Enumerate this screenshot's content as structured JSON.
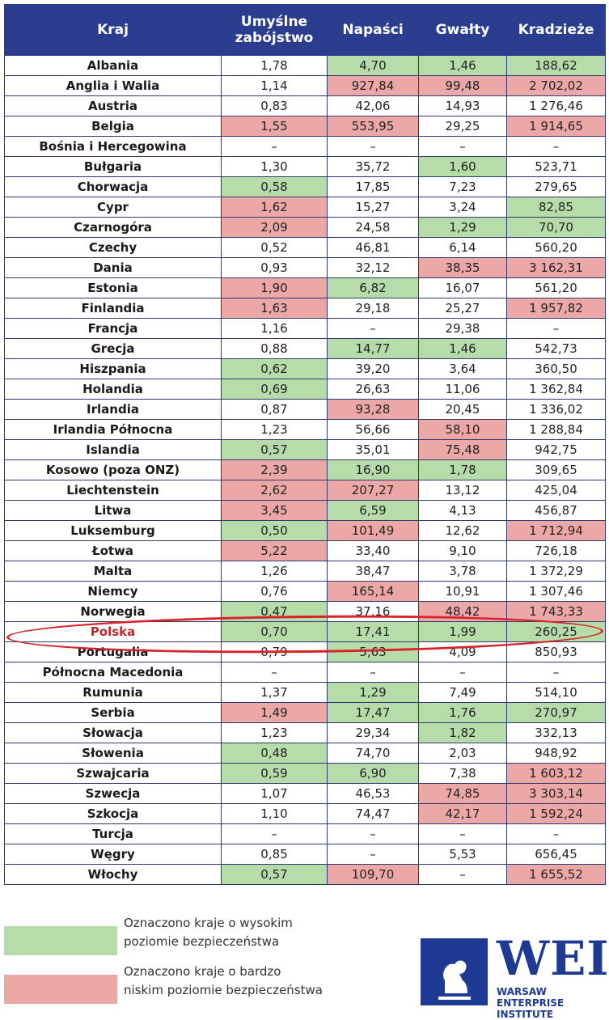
{
  "table": {
    "headers": [
      "Kraj",
      "Umyślne zabójstwo",
      "Napaści",
      "Gwałty",
      "Kradzieże"
    ],
    "rows": [
      {
        "country": "Albania",
        "cells": [
          {
            "v": "1,78",
            "c": ""
          },
          {
            "v": "4,70",
            "c": "g"
          },
          {
            "v": "1,46",
            "c": "g"
          },
          {
            "v": "188,62",
            "c": "g"
          }
        ]
      },
      {
        "country": "Anglia i Walia",
        "cells": [
          {
            "v": "1,14",
            "c": ""
          },
          {
            "v": "927,84",
            "c": "r"
          },
          {
            "v": "99,48",
            "c": "r"
          },
          {
            "v": "2 702,02",
            "c": "r"
          }
        ]
      },
      {
        "country": "Austria",
        "cells": [
          {
            "v": "0,83",
            "c": ""
          },
          {
            "v": "42,06",
            "c": ""
          },
          {
            "v": "14,93",
            "c": ""
          },
          {
            "v": "1 276,46",
            "c": ""
          }
        ]
      },
      {
        "country": "Belgia",
        "cells": [
          {
            "v": "1,55",
            "c": "r"
          },
          {
            "v": "553,95",
            "c": "r"
          },
          {
            "v": "29,25",
            "c": ""
          },
          {
            "v": "1 914,65",
            "c": "r"
          }
        ]
      },
      {
        "country": "Bośnia i Hercegowina",
        "cells": [
          {
            "v": "–",
            "c": ""
          },
          {
            "v": "–",
            "c": ""
          },
          {
            "v": "–",
            "c": ""
          },
          {
            "v": "–",
            "c": ""
          }
        ]
      },
      {
        "country": "Bułgaria",
        "cells": [
          {
            "v": "1,30",
            "c": ""
          },
          {
            "v": "35,72",
            "c": ""
          },
          {
            "v": "1,60",
            "c": "g"
          },
          {
            "v": "523,71",
            "c": ""
          }
        ]
      },
      {
        "country": "Chorwacja",
        "cells": [
          {
            "v": "0,58",
            "c": "g"
          },
          {
            "v": "17,85",
            "c": ""
          },
          {
            "v": "7,23",
            "c": ""
          },
          {
            "v": "279,65",
            "c": ""
          }
        ]
      },
      {
        "country": "Cypr",
        "cells": [
          {
            "v": "1,62",
            "c": "r"
          },
          {
            "v": "15,27",
            "c": ""
          },
          {
            "v": "3,24",
            "c": ""
          },
          {
            "v": "82,85",
            "c": "g"
          }
        ]
      },
      {
        "country": "Czarnogóra",
        "cells": [
          {
            "v": "2,09",
            "c": "r"
          },
          {
            "v": "24,58",
            "c": ""
          },
          {
            "v": "1,29",
            "c": "g"
          },
          {
            "v": "70,70",
            "c": "g"
          }
        ]
      },
      {
        "country": "Czechy",
        "cells": [
          {
            "v": "0,52",
            "c": ""
          },
          {
            "v": "46,81",
            "c": ""
          },
          {
            "v": "6,14",
            "c": ""
          },
          {
            "v": "560,20",
            "c": ""
          }
        ]
      },
      {
        "country": "Dania",
        "cells": [
          {
            "v": "0,93",
            "c": ""
          },
          {
            "v": "32,12",
            "c": ""
          },
          {
            "v": "38,35",
            "c": "r"
          },
          {
            "v": "3 162,31",
            "c": "r"
          }
        ]
      },
      {
        "country": "Estonia",
        "cells": [
          {
            "v": "1,90",
            "c": "r"
          },
          {
            "v": "6,82",
            "c": "g"
          },
          {
            "v": "16,07",
            "c": ""
          },
          {
            "v": "561,20",
            "c": ""
          }
        ]
      },
      {
        "country": "Finlandia",
        "cells": [
          {
            "v": "1,63",
            "c": "r"
          },
          {
            "v": "29,18",
            "c": ""
          },
          {
            "v": "25,27",
            "c": ""
          },
          {
            "v": "1 957,82",
            "c": "r"
          }
        ]
      },
      {
        "country": "Francja",
        "cells": [
          {
            "v": "1,16",
            "c": ""
          },
          {
            "v": "–",
            "c": ""
          },
          {
            "v": "29,38",
            "c": ""
          },
          {
            "v": "–",
            "c": ""
          }
        ]
      },
      {
        "country": "Grecja",
        "cells": [
          {
            "v": "0,88",
            "c": ""
          },
          {
            "v": "14,77",
            "c": "g"
          },
          {
            "v": "1,46",
            "c": "g"
          },
          {
            "v": "542,73",
            "c": ""
          }
        ]
      },
      {
        "country": "Hiszpania",
        "cells": [
          {
            "v": "0,62",
            "c": "g"
          },
          {
            "v": "39,20",
            "c": ""
          },
          {
            "v": "3,64",
            "c": ""
          },
          {
            "v": "360,50",
            "c": ""
          }
        ]
      },
      {
        "country": "Holandia",
        "cells": [
          {
            "v": "0,69",
            "c": "g"
          },
          {
            "v": "26,63",
            "c": ""
          },
          {
            "v": "11,06",
            "c": ""
          },
          {
            "v": "1 362,84",
            "c": ""
          }
        ]
      },
      {
        "country": "Irlandia",
        "cells": [
          {
            "v": "0,87",
            "c": ""
          },
          {
            "v": "93,28",
            "c": "r"
          },
          {
            "v": "20,45",
            "c": ""
          },
          {
            "v": "1 336,02",
            "c": ""
          }
        ]
      },
      {
        "country": "Irlandia Północna",
        "cells": [
          {
            "v": "1,23",
            "c": ""
          },
          {
            "v": "56,66",
            "c": ""
          },
          {
            "v": "58,10",
            "c": "r"
          },
          {
            "v": "1 288,84",
            "c": ""
          }
        ]
      },
      {
        "country": "Islandia",
        "cells": [
          {
            "v": "0,57",
            "c": "g"
          },
          {
            "v": "35,01",
            "c": ""
          },
          {
            "v": "75,48",
            "c": "r"
          },
          {
            "v": "942,75",
            "c": ""
          }
        ]
      },
      {
        "country": "Kosowo (poza ONZ)",
        "cells": [
          {
            "v": "2,39",
            "c": "r"
          },
          {
            "v": "16,90",
            "c": "g"
          },
          {
            "v": "1,78",
            "c": "g"
          },
          {
            "v": "309,65",
            "c": ""
          }
        ]
      },
      {
        "country": "Liechtenstein",
        "cells": [
          {
            "v": "2,62",
            "c": "r"
          },
          {
            "v": "207,27",
            "c": "r"
          },
          {
            "v": "13,12",
            "c": ""
          },
          {
            "v": "425,04",
            "c": ""
          }
        ]
      },
      {
        "country": "Litwa",
        "cells": [
          {
            "v": "3,45",
            "c": "r"
          },
          {
            "v": "6,59",
            "c": "g"
          },
          {
            "v": "4,13",
            "c": ""
          },
          {
            "v": "456,87",
            "c": ""
          }
        ]
      },
      {
        "country": "Luksemburg",
        "cells": [
          {
            "v": "0,50",
            "c": "g"
          },
          {
            "v": "101,49",
            "c": "r"
          },
          {
            "v": "12,62",
            "c": ""
          },
          {
            "v": "1 712,94",
            "c": "r"
          }
        ]
      },
      {
        "country": "Łotwa",
        "cells": [
          {
            "v": "5,22",
            "c": "r"
          },
          {
            "v": "33,40",
            "c": ""
          },
          {
            "v": "9,10",
            "c": ""
          },
          {
            "v": "726,18",
            "c": ""
          }
        ]
      },
      {
        "country": "Malta",
        "cells": [
          {
            "v": "1,26",
            "c": ""
          },
          {
            "v": "38,47",
            "c": ""
          },
          {
            "v": "3,78",
            "c": ""
          },
          {
            "v": "1 372,29",
            "c": ""
          }
        ]
      },
      {
        "country": "Niemcy",
        "cells": [
          {
            "v": "0,76",
            "c": ""
          },
          {
            "v": "165,14",
            "c": "r"
          },
          {
            "v": "10,91",
            "c": ""
          },
          {
            "v": "1 307,46",
            "c": ""
          }
        ]
      },
      {
        "country": "Norwegia",
        "cells": [
          {
            "v": "0,47",
            "c": "g"
          },
          {
            "v": "37,16",
            "c": ""
          },
          {
            "v": "48,42",
            "c": "r"
          },
          {
            "v": "1 743,33",
            "c": "r"
          }
        ]
      },
      {
        "country": "Polska",
        "highlight": true,
        "cells": [
          {
            "v": "0,70",
            "c": "g"
          },
          {
            "v": "17,41",
            "c": "g"
          },
          {
            "v": "1,99",
            "c": "g"
          },
          {
            "v": "260,25",
            "c": "g"
          }
        ]
      },
      {
        "country": "Portugalia",
        "cells": [
          {
            "v": "0,79",
            "c": ""
          },
          {
            "v": "5,63",
            "c": "g"
          },
          {
            "v": "4,09",
            "c": ""
          },
          {
            "v": "850,93",
            "c": ""
          }
        ]
      },
      {
        "country": "Północna Macedonia",
        "cells": [
          {
            "v": "–",
            "c": ""
          },
          {
            "v": "–",
            "c": ""
          },
          {
            "v": "–",
            "c": ""
          },
          {
            "v": "–",
            "c": ""
          }
        ]
      },
      {
        "country": "Rumunia",
        "cells": [
          {
            "v": "1,37",
            "c": ""
          },
          {
            "v": "1,29",
            "c": "g"
          },
          {
            "v": "7,49",
            "c": ""
          },
          {
            "v": "514,10",
            "c": ""
          }
        ]
      },
      {
        "country": "Serbia",
        "cells": [
          {
            "v": "1,49",
            "c": "r"
          },
          {
            "v": "17,47",
            "c": "g"
          },
          {
            "v": "1,76",
            "c": "g"
          },
          {
            "v": "270,97",
            "c": "g"
          }
        ]
      },
      {
        "country": "Słowacja",
        "cells": [
          {
            "v": "1,23",
            "c": ""
          },
          {
            "v": "29,34",
            "c": ""
          },
          {
            "v": "1,82",
            "c": "g"
          },
          {
            "v": "332,13",
            "c": ""
          }
        ]
      },
      {
        "country": "Słowenia",
        "cells": [
          {
            "v": "0,48",
            "c": "g"
          },
          {
            "v": "74,70",
            "c": ""
          },
          {
            "v": "2,03",
            "c": ""
          },
          {
            "v": "948,92",
            "c": ""
          }
        ]
      },
      {
        "country": "Szwajcaria",
        "cells": [
          {
            "v": "0,59",
            "c": "g"
          },
          {
            "v": "6,90",
            "c": "g"
          },
          {
            "v": "7,38",
            "c": ""
          },
          {
            "v": "1 603,12",
            "c": "r"
          }
        ]
      },
      {
        "country": "Szwecja",
        "cells": [
          {
            "v": "1,07",
            "c": ""
          },
          {
            "v": "46,53",
            "c": ""
          },
          {
            "v": "74,85",
            "c": "r"
          },
          {
            "v": "3 303,14",
            "c": "r"
          }
        ]
      },
      {
        "country": "Szkocja",
        "cells": [
          {
            "v": "1,10",
            "c": ""
          },
          {
            "v": "74,47",
            "c": ""
          },
          {
            "v": "42,17",
            "c": "r"
          },
          {
            "v": "1 592,24",
            "c": "r"
          }
        ]
      },
      {
        "country": "Turcja",
        "cells": [
          {
            "v": "–",
            "c": ""
          },
          {
            "v": "–",
            "c": ""
          },
          {
            "v": "–",
            "c": ""
          },
          {
            "v": "–",
            "c": ""
          }
        ]
      },
      {
        "country": "Węgry",
        "cells": [
          {
            "v": "0,85",
            "c": ""
          },
          {
            "v": "–",
            "c": ""
          },
          {
            "v": "5,53",
            "c": ""
          },
          {
            "v": "656,45",
            "c": ""
          }
        ]
      },
      {
        "country": "Włochy",
        "cells": [
          {
            "v": "0,57",
            "c": "g"
          },
          {
            "v": "109,70",
            "c": "r"
          },
          {
            "v": "–",
            "c": ""
          },
          {
            "v": "1 655,52",
            "c": "r"
          }
        ]
      }
    ]
  },
  "colors": {
    "header_bg": "#2a3d8f",
    "high_safety_green": "#b6dcaa",
    "low_safety_red": "#eca7a7",
    "highlight_ellipse": "#d8232a"
  },
  "legend": {
    "green_line1": "Oznaczono kraje o wysokim",
    "green_line2": "poziomie bezpieczeństwa",
    "red_line1": "Oznaczono kraje o bardzo",
    "red_line2": "niskim poziomie bezpieczeństwa"
  },
  "logo": {
    "mark": "WEI",
    "line1": "WARSAW ENTERPRISE",
    "line2": "INSTITUTE",
    "icon": "thinker-statue-icon"
  }
}
